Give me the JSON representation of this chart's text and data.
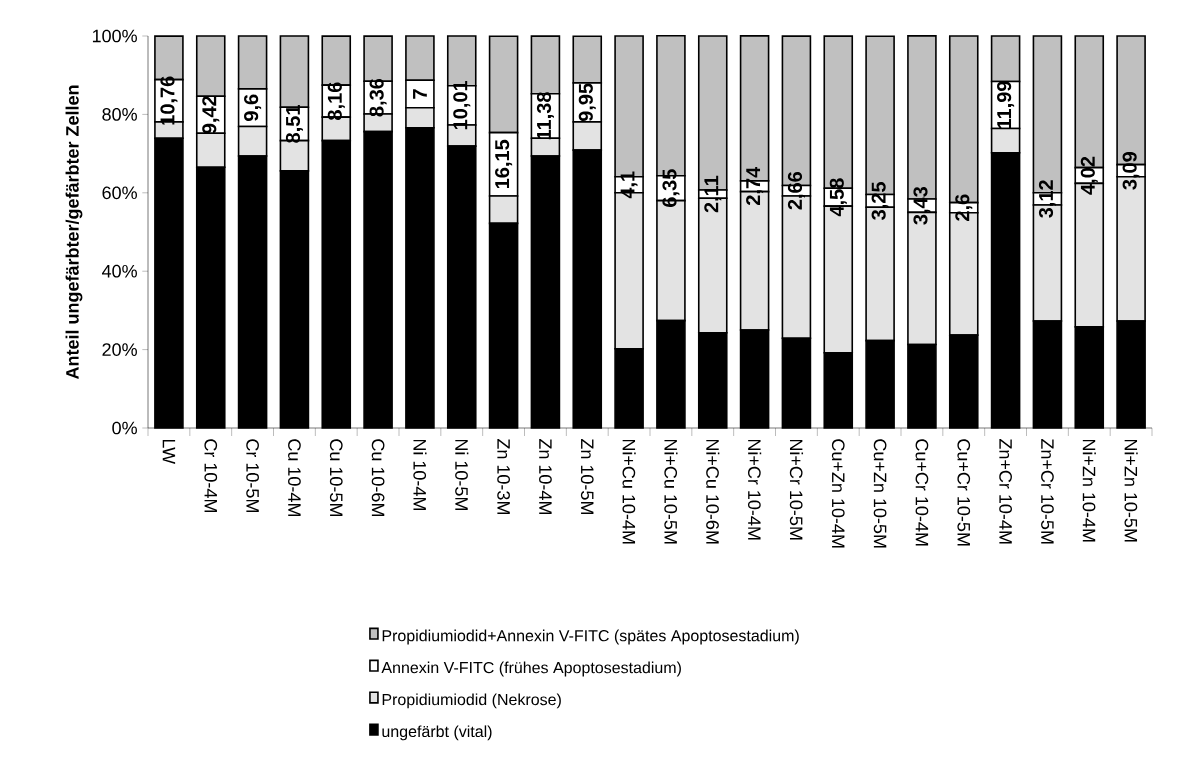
{
  "chart_data": {
    "type": "bar",
    "stacked": true,
    "ylabel": "Anteil ungefärbter/gefärbter Zellen",
    "categories": [
      "LW",
      "Cr 10-4M",
      "Cr 10-5M",
      "Cu 10-4M",
      "Cu 10-5M",
      "Cu 10-6M",
      "Ni 10-4M",
      "Ni 10-5M",
      "Zn 10-3M",
      "Zn 10-4M",
      "Zn 10-5M",
      "Ni+Cu 10-4M",
      "Ni+Cu 10-5M",
      "Ni+Cu 10-6M",
      "Ni+Cr 10-4M",
      "Ni+Cr 10-5M",
      "Cu+Zn 10-4M",
      "Cu+Zn 10-5M",
      "Cu+Cr 10-4M",
      "Cu+Cr 10-5M",
      "Zn+Cr 10-4M",
      "Zn+Cr 10-5M",
      "Ni+Zn 10-4M",
      "Ni+Zn 10-5M"
    ],
    "series": [
      {
        "name": "ungefärbt (vital)",
        "color": "#000000",
        "values": [
          73.9,
          66.5,
          69.4,
          65.6,
          73.3,
          75.6,
          76.6,
          71.9,
          52.2,
          69.4,
          70.9,
          20.2,
          27.4,
          24.3,
          25.0,
          22.9,
          19.2,
          22.3,
          21.3,
          23.7,
          70.2,
          27.3,
          25.8,
          27.3
        ]
      },
      {
        "name": "Propidiumiodid (Nekrose)",
        "color": "#e3e3e3",
        "values": [
          4.2,
          8.7,
          7.5,
          7.7,
          6.0,
          4.5,
          5.1,
          5.4,
          7.0,
          4.5,
          7.2,
          39.8,
          30.6,
          34.3,
          35.3,
          36.3,
          37.4,
          34.0,
          33.7,
          31.2,
          6.2,
          29.6,
          36.6,
          36.8
        ]
      },
      {
        "name": "Annexin V-FITC (frühes Apoptosestadium)",
        "color": "#ffffff",
        "values": [
          10.76,
          9.42,
          9.6,
          8.51,
          8.16,
          8.36,
          7,
          10.01,
          16.15,
          11.38,
          9.95,
          4.1,
          6.35,
          2.11,
          2.74,
          2.66,
          4.58,
          3.25,
          3.43,
          2.6,
          11.99,
          3.12,
          4.02,
          3.09
        ],
        "value_labels": [
          "10,76",
          "9,42",
          "9,6",
          "8,51",
          "8,16",
          "8,36",
          "7",
          "10,01",
          "16,15",
          "11,38",
          "9,95",
          "4,1",
          "6,35",
          "2,11",
          "2,74",
          "2,66",
          "4,58",
          "3,25",
          "3,43",
          "2,6",
          "11,99",
          "3,12",
          "4,02",
          "3,09"
        ]
      },
      {
        "name": "Propidiumiodid+Annexin V-FITC (spätes Apoptosestadium)",
        "color": "#c0c0c0",
        "values": [
          11.1,
          15.4,
          13.5,
          18.2,
          12.5,
          11.5,
          11.3,
          12.7,
          24.6,
          14.7,
          11.9,
          35.9,
          35.7,
          39.3,
          37.0,
          38.1,
          38.8,
          40.4,
          41.6,
          42.5,
          11.6,
          40.0,
          33.6,
          32.8
        ]
      }
    ],
    "ylim": [
      0,
      100
    ],
    "yticks": [
      {
        "value": 0,
        "label": "0%"
      },
      {
        "value": 20,
        "label": "20%"
      },
      {
        "value": 40,
        "label": "40%"
      },
      {
        "value": 60,
        "label": "60%"
      },
      {
        "value": 80,
        "label": "80%"
      },
      {
        "value": 100,
        "label": "100%"
      }
    ],
    "legend": "bottom"
  }
}
